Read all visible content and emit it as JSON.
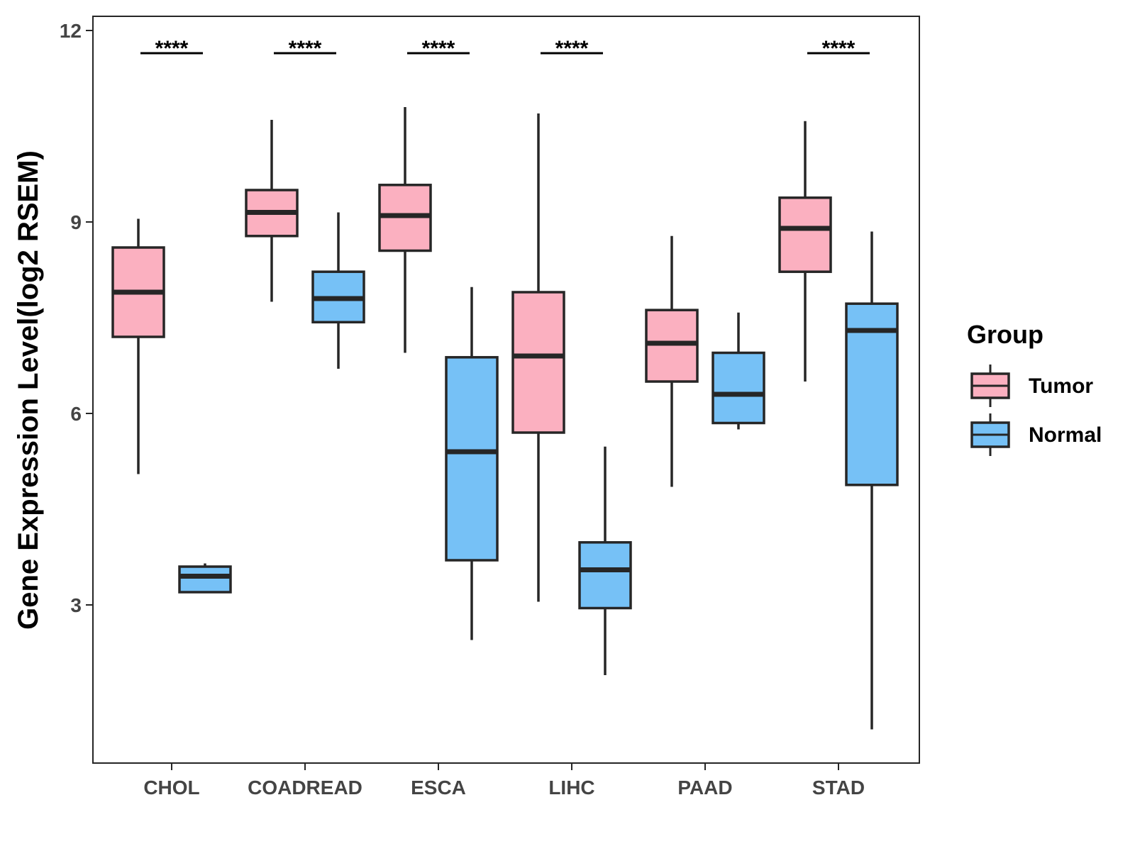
{
  "chart_data": {
    "type": "boxplot",
    "title": "",
    "xlabel": "",
    "ylabel": "Gene Expression Level(log2 RSEM)",
    "ylim": [
      0.2,
      12.2
    ],
    "yticks": [
      3,
      6,
      9,
      12
    ],
    "grid": false,
    "legend": {
      "title": "Group",
      "position": "right",
      "entries": [
        "Tumor",
        "Normal"
      ]
    },
    "colors": {
      "Tumor": "#FBB0C0",
      "Normal": "#76C1F6",
      "stroke": "#262626"
    },
    "categories": [
      "CHOL",
      "COADREAD",
      "ESCA",
      "LIHC",
      "PAAD",
      "STAD"
    ],
    "series": [
      {
        "name": "Tumor",
        "boxes": [
          {
            "category": "CHOL",
            "min": 5.05,
            "q1": 7.2,
            "median": 7.9,
            "q3": 8.6,
            "max": 9.05
          },
          {
            "category": "COADREAD",
            "min": 7.75,
            "q1": 8.78,
            "median": 9.15,
            "q3": 9.5,
            "max": 10.6
          },
          {
            "category": "ESCA",
            "min": 6.95,
            "q1": 8.55,
            "median": 9.1,
            "q3": 9.58,
            "max": 10.8
          },
          {
            "category": "LIHC",
            "min": 3.05,
            "q1": 5.7,
            "median": 6.9,
            "q3": 7.9,
            "max": 10.7
          },
          {
            "category": "PAAD",
            "min": 4.85,
            "q1": 6.5,
            "median": 7.1,
            "q3": 7.62,
            "max": 8.78
          },
          {
            "category": "STAD",
            "min": 6.5,
            "q1": 8.22,
            "median": 8.9,
            "q3": 9.38,
            "max": 10.58
          }
        ]
      },
      {
        "name": "Normal",
        "boxes": [
          {
            "category": "CHOL",
            "min": 3.2,
            "q1": 3.2,
            "median": 3.45,
            "q3": 3.6,
            "max": 3.65
          },
          {
            "category": "COADREAD",
            "min": 6.7,
            "q1": 7.43,
            "median": 7.8,
            "q3": 8.22,
            "max": 9.15
          },
          {
            "category": "ESCA",
            "min": 2.45,
            "q1": 3.7,
            "median": 5.4,
            "q3": 6.88,
            "max": 7.98
          },
          {
            "category": "LIHC",
            "min": 1.9,
            "q1": 2.95,
            "median": 3.55,
            "q3": 3.98,
            "max": 5.48
          },
          {
            "category": "PAAD",
            "min": 5.75,
            "q1": 5.85,
            "median": 6.3,
            "q3": 6.95,
            "max": 7.58
          },
          {
            "category": "STAD",
            "min": 1.05,
            "q1": 4.88,
            "median": 7.3,
            "q3": 7.72,
            "max": 8.85
          }
        ]
      }
    ],
    "significance": [
      {
        "category": "CHOL",
        "label": "****"
      },
      {
        "category": "COADREAD",
        "label": "****"
      },
      {
        "category": "ESCA",
        "label": "****"
      },
      {
        "category": "LIHC",
        "label": "****"
      },
      {
        "category": "PAAD",
        "label": ""
      },
      {
        "category": "STAD",
        "label": "****"
      }
    ]
  }
}
